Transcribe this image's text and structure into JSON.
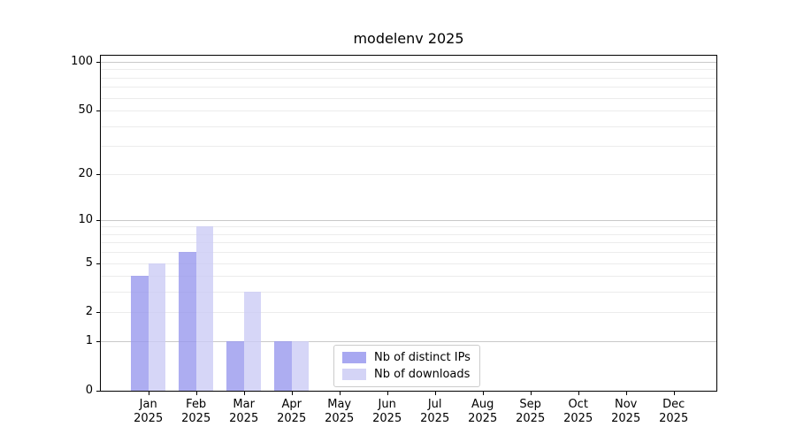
{
  "title": "modelenv 2025",
  "chart_data": {
    "type": "bar",
    "title": "modelenv 2025",
    "categories": [
      "Jan",
      "Feb",
      "Mar",
      "Apr",
      "May",
      "Jun",
      "Jul",
      "Aug",
      "Sep",
      "Oct",
      "Nov",
      "Dec"
    ],
    "year_label": "2025",
    "series": [
      {
        "name": "Nb of distinct IPs",
        "color": "#9999ee",
        "values": [
          4,
          6,
          1,
          1,
          0,
          0,
          0,
          0,
          0,
          0,
          0,
          0
        ]
      },
      {
        "name": "Nb of downloads",
        "color": "#ccccf5",
        "values": [
          5,
          9,
          3,
          1,
          0,
          0,
          0,
          0,
          0,
          0,
          0,
          0
        ]
      }
    ],
    "yticks": [
      0,
      1,
      2,
      5,
      10,
      20,
      50,
      100
    ],
    "scale": "log1p",
    "ylim": [
      0,
      112
    ],
    "xlabel": "",
    "ylabel": "",
    "grid": true,
    "grid_major_values": [
      1,
      10,
      100
    ],
    "grid_minor_values": [
      2,
      3,
      4,
      5,
      6,
      7,
      8,
      9,
      20,
      30,
      40,
      50,
      60,
      70,
      80,
      90
    ],
    "grid_major_color": "#c9c9c9",
    "grid_minor_color": "#ececec",
    "legend_position": "lower center",
    "axis_color": "#000000",
    "background_color": "#ffffff"
  }
}
